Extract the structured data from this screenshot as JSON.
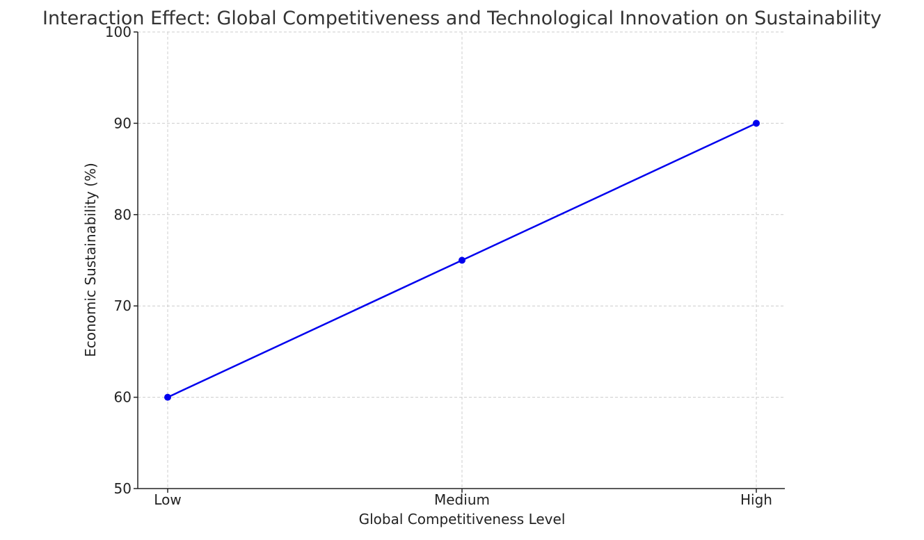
{
  "chart_data": {
    "type": "line",
    "title": "Interaction Effect: Global Competitiveness and Technological Innovation on Sustainability",
    "xlabel": "Global Competitiveness Level",
    "ylabel": "Economic Sustainability (%)",
    "categories": [
      "Low",
      "Medium",
      "High"
    ],
    "series": [
      {
        "values": [
          60,
          75,
          90
        ],
        "color": "#0000ee",
        "marker": "circle"
      }
    ],
    "ylim": [
      50,
      100
    ],
    "yticks": [
      50,
      60,
      70,
      80,
      90,
      100
    ],
    "grid": true,
    "legend": "none"
  }
}
